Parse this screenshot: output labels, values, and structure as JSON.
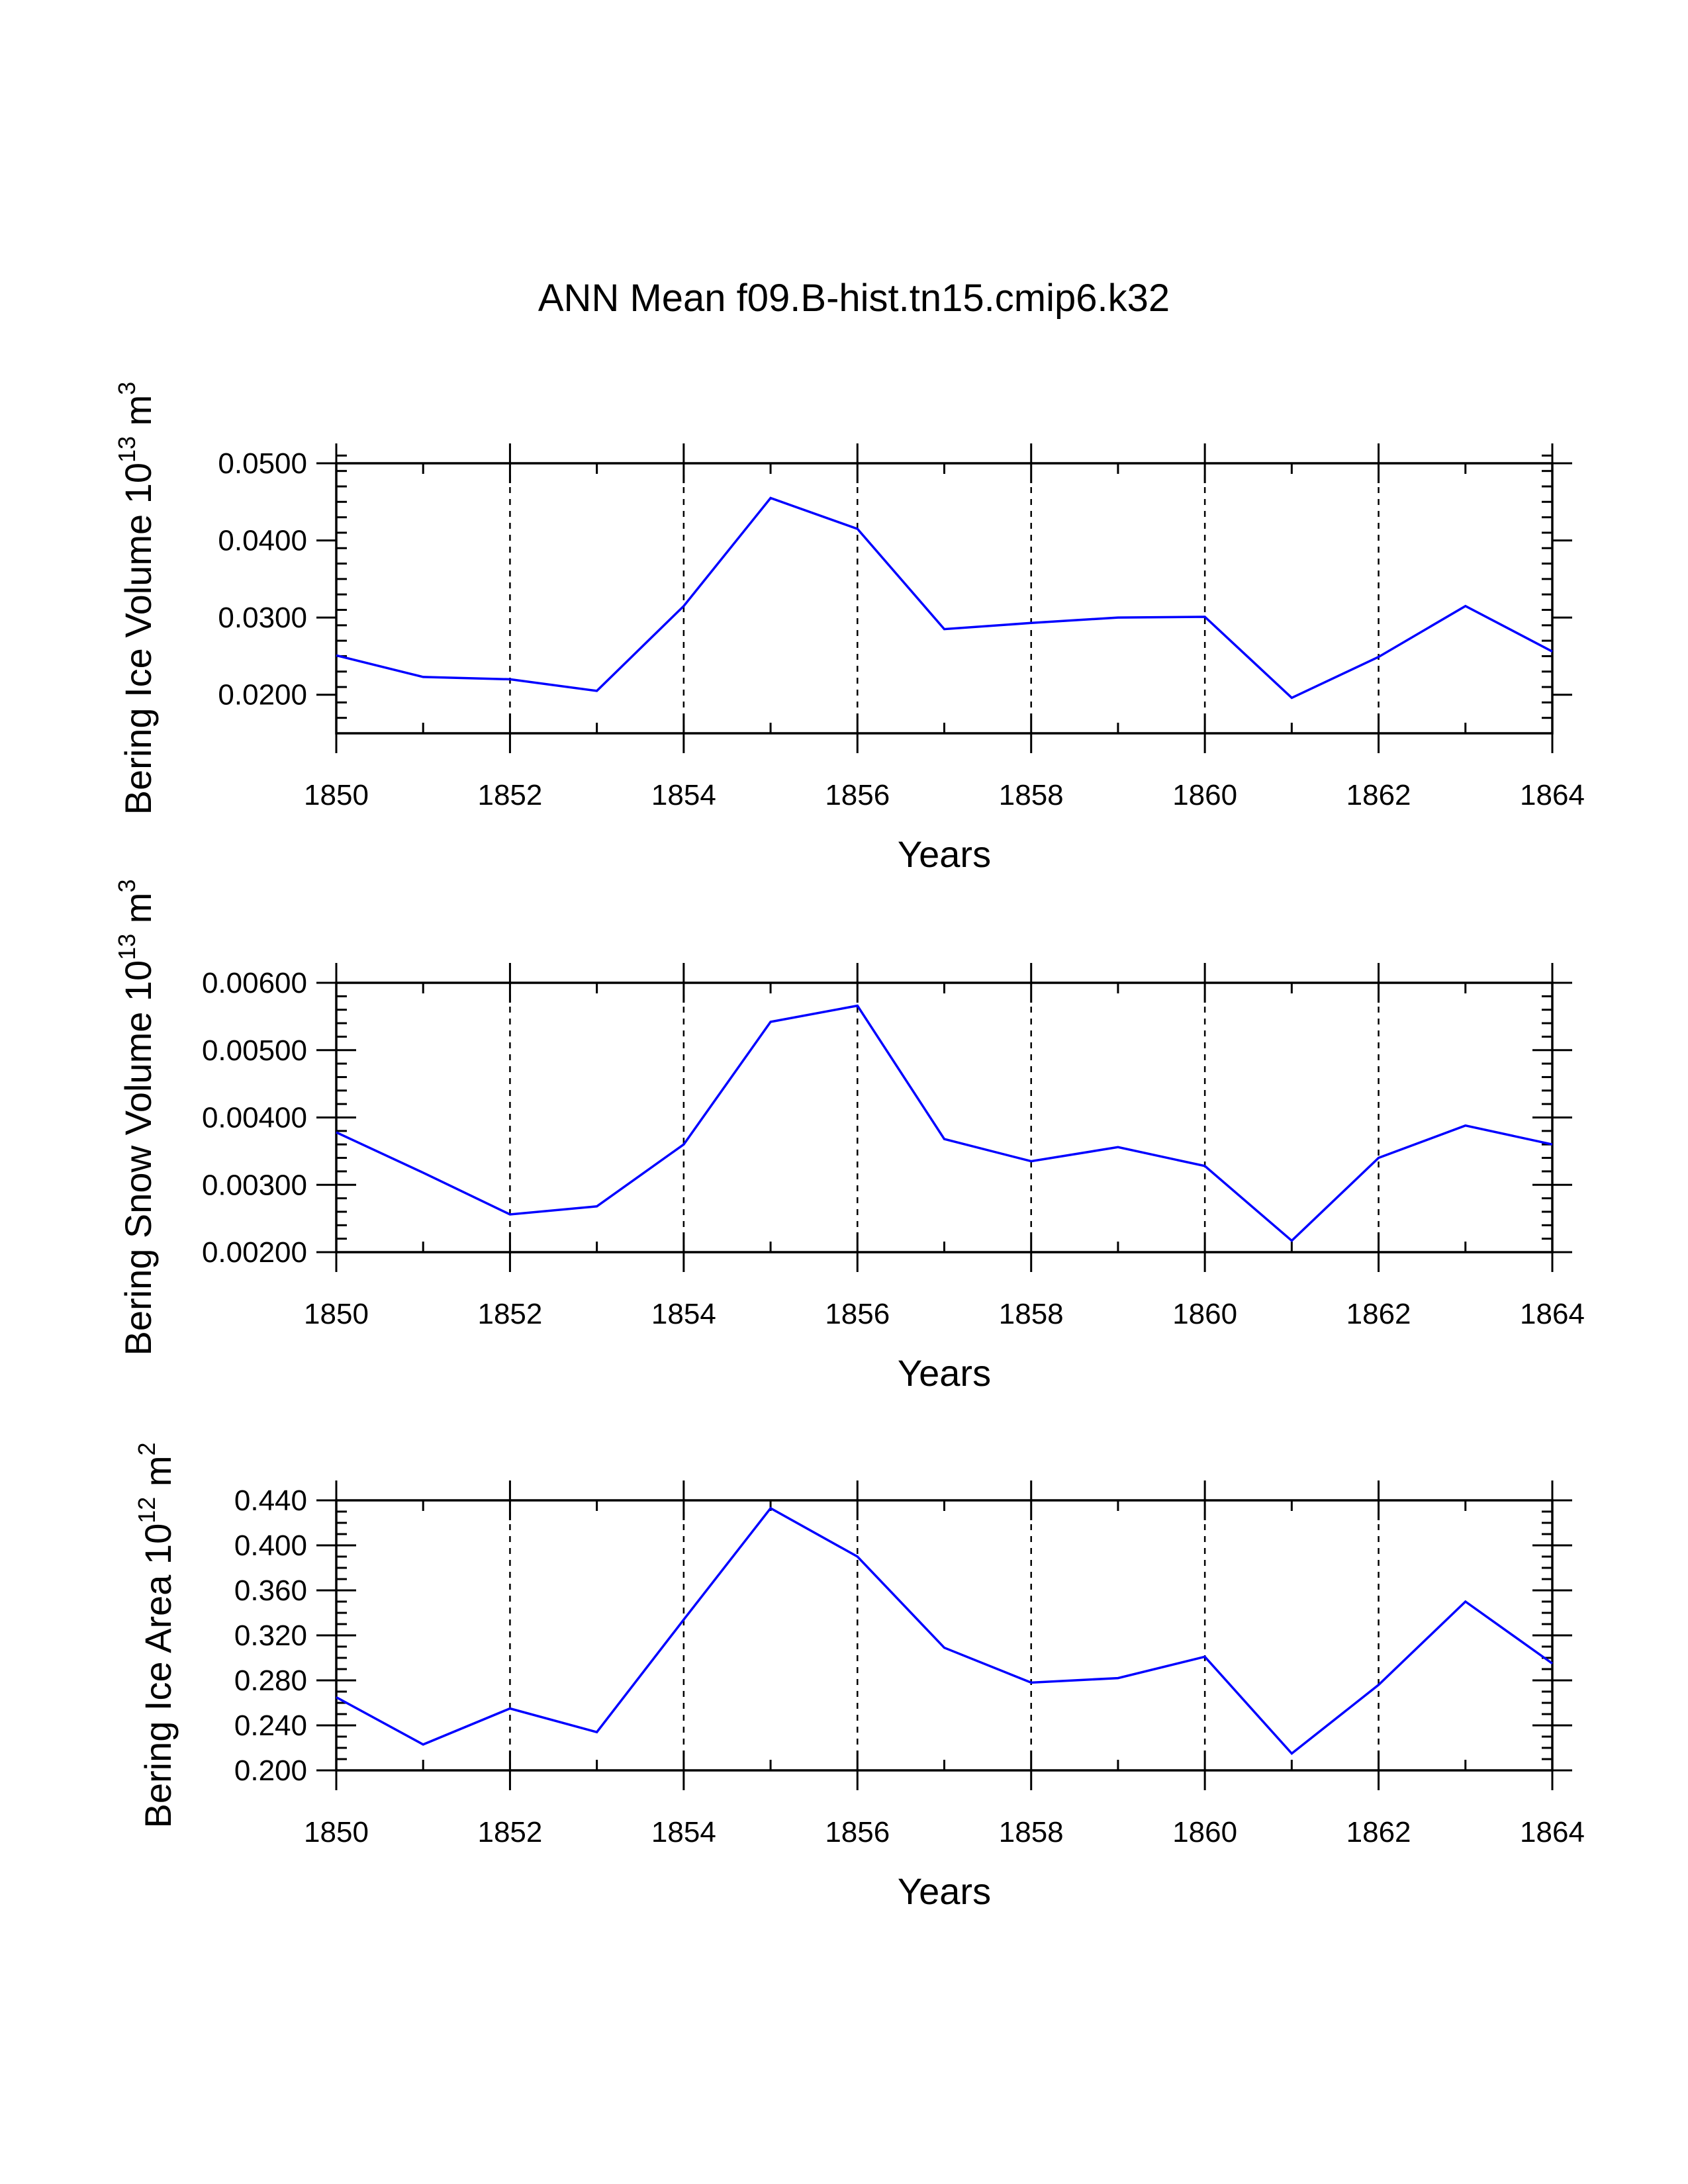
{
  "title": "ANN Mean f09.B-hist.tn15.cmip6.k32",
  "colors": {
    "line": "#0000ff",
    "axis": "#000000",
    "grid": "#000000",
    "background": "#ffffff"
  },
  "chart_data": [
    {
      "type": "line",
      "series_name": "Bering Ice Volume",
      "ylabel": "Bering Ice Volume",
      "ylabel_unit": {
        "base": "10",
        "exp": "13",
        "unit": "m",
        "unit_exp": "3"
      },
      "xlabel": "Years",
      "xlim": [
        1850,
        1864
      ],
      "ylim": [
        0.015,
        0.05
      ],
      "x_ticks": [
        1850,
        1852,
        1854,
        1856,
        1858,
        1860,
        1862,
        1864
      ],
      "x_tick_labels": [
        "1850",
        "1852",
        "1854",
        "1856",
        "1858",
        "1860",
        "1862",
        "1864"
      ],
      "y_ticks": [
        0.02,
        0.03,
        0.04,
        0.05
      ],
      "y_tick_labels": [
        "0.0200",
        "0.0300",
        "0.0400",
        "0.0500"
      ],
      "y_minor_step": 0.002,
      "x": [
        1850,
        1851,
        1852,
        1853,
        1854,
        1855,
        1856,
        1857,
        1858,
        1859,
        1860,
        1861,
        1862,
        1863,
        1864
      ],
      "values": [
        0.0251,
        0.0223,
        0.022,
        0.0205,
        0.0315,
        0.0455,
        0.0415,
        0.0285,
        0.0293,
        0.03,
        0.0301,
        0.0196,
        0.0249,
        0.0315,
        0.0256
      ],
      "grid": "vertical-dashed"
    },
    {
      "type": "line",
      "series_name": "Bering Snow Volume",
      "ylabel": "Bering Snow Volume",
      "ylabel_unit": {
        "base": "10",
        "exp": "13",
        "unit": "m",
        "unit_exp": "3"
      },
      "xlabel": "Years",
      "xlim": [
        1850,
        1864
      ],
      "ylim": [
        0.002,
        0.006
      ],
      "x_ticks": [
        1850,
        1852,
        1854,
        1856,
        1858,
        1860,
        1862,
        1864
      ],
      "x_tick_labels": [
        "1850",
        "1852",
        "1854",
        "1856",
        "1858",
        "1860",
        "1862",
        "1864"
      ],
      "y_ticks": [
        0.002,
        0.003,
        0.004,
        0.005,
        0.006
      ],
      "y_tick_labels": [
        "0.00200",
        "0.00300",
        "0.00400",
        "0.00500",
        "0.00600"
      ],
      "y_minor_step": 0.0002,
      "x": [
        1850,
        1851,
        1852,
        1853,
        1854,
        1855,
        1856,
        1857,
        1858,
        1859,
        1860,
        1861,
        1862,
        1863,
        1864
      ],
      "values": [
        0.00378,
        0.00318,
        0.00256,
        0.00268,
        0.0036,
        0.00542,
        0.00566,
        0.00368,
        0.00335,
        0.00356,
        0.00328,
        0.00217,
        0.0034,
        0.00388,
        0.0036
      ],
      "grid": "vertical-dashed"
    },
    {
      "type": "line",
      "series_name": "Bering Ice Area",
      "ylabel": "Bering Ice Area",
      "ylabel_unit": {
        "base": "10",
        "exp": "12",
        "unit": "m",
        "unit_exp": "2"
      },
      "xlabel": "Years",
      "xlim": [
        1850,
        1864
      ],
      "ylim": [
        0.2,
        0.44
      ],
      "x_ticks": [
        1850,
        1852,
        1854,
        1856,
        1858,
        1860,
        1862,
        1864
      ],
      "x_tick_labels": [
        "1850",
        "1852",
        "1854",
        "1856",
        "1858",
        "1860",
        "1862",
        "1864"
      ],
      "y_ticks": [
        0.2,
        0.24,
        0.28,
        0.32,
        0.36,
        0.4,
        0.44
      ],
      "y_tick_labels": [
        "0.200",
        "0.240",
        "0.280",
        "0.320",
        "0.360",
        "0.400",
        "0.440"
      ],
      "y_minor_step": 0.01,
      "x": [
        1850,
        1851,
        1852,
        1853,
        1854,
        1855,
        1856,
        1857,
        1858,
        1859,
        1860,
        1861,
        1862,
        1863,
        1864
      ],
      "values": [
        0.265,
        0.223,
        0.255,
        0.234,
        0.334,
        0.433,
        0.39,
        0.309,
        0.278,
        0.282,
        0.301,
        0.215,
        0.276,
        0.35,
        0.295
      ],
      "grid": "vertical-dashed"
    }
  ]
}
